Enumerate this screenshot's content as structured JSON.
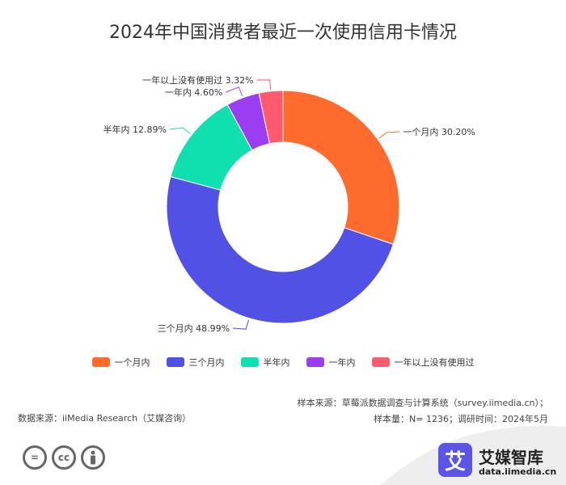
{
  "chart_data": {
    "type": "pie",
    "style": "donut",
    "title": "2024年中国消费者最近一次使用信用卡情况",
    "categories": [
      "一个月内",
      "三个月内",
      "半年内",
      "一年内",
      "一年以上没有使用过"
    ],
    "values": [
      30.2,
      48.99,
      12.89,
      4.6,
      3.32
    ],
    "data_labels": [
      "一个月内 30.20%",
      "三个月内 48.99%",
      "半年内 12.89%",
      "一年内 4.60%",
      "一年以上没有使用过 3.32%"
    ],
    "colors": [
      "#ff6b2c",
      "#5152e5",
      "#10e0b0",
      "#9b3df0",
      "#ff5a6e"
    ],
    "legend_position": "bottom"
  },
  "source": {
    "data_source": "数据来源：iiMedia Research（艾媒咨询）",
    "sample_source": "样本来源：草莓派数据调查与计算系统（survey.iimedia.cn）；",
    "sample_info": "样本量：N= 1236；调研时间：2024年5月"
  },
  "brand": {
    "mark": "艾",
    "name": "艾媒智库",
    "url": "data.iimedia.cn"
  },
  "license_icons": [
    "equals-icon",
    "cc-icon",
    "person-icon"
  ]
}
